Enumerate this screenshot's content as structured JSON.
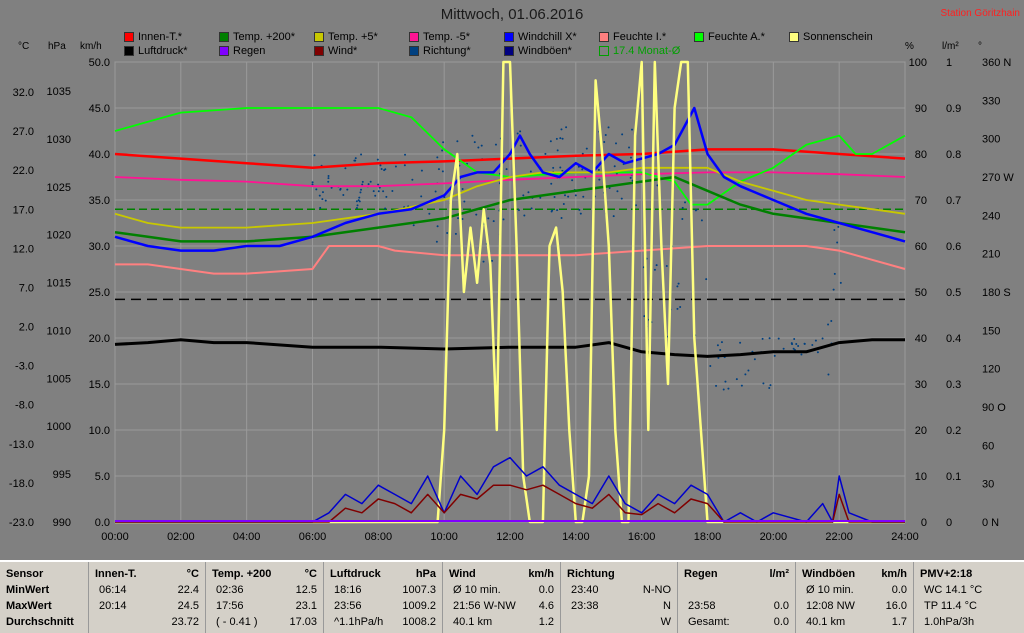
{
  "title": "Mittwoch, 01.06.2016",
  "station": "Station Göritzhain",
  "legend": [
    {
      "label": "Innen-T.*",
      "color": "#ff0000"
    },
    {
      "label": "Temp. +200*",
      "color": "#008000"
    },
    {
      "label": "Temp. +5*",
      "color": "#c8c800"
    },
    {
      "label": "Temp. -5*",
      "color": "#ff1493"
    },
    {
      "label": "Windchill X*",
      "color": "#0000ff"
    },
    {
      "label": "Feuchte I.*",
      "color": "#ff8080"
    },
    {
      "label": "Feuchte A.*",
      "color": "#00ff00"
    },
    {
      "label": "Sonnenschein",
      "color": "#ffff80"
    },
    {
      "label": "Luftdruck*",
      "color": "#000000"
    },
    {
      "label": "Regen",
      "color": "#8000ff"
    },
    {
      "label": "Wind*",
      "color": "#800000"
    },
    {
      "label": "Richtung*",
      "color": "#004080"
    },
    {
      "label": "Windböen*",
      "color": "#000080"
    },
    {
      "label": "17.4 Monat-Ø",
      "color": "#00a000"
    }
  ],
  "units": {
    "temp": "°C",
    "pressure": "hPa",
    "wind": "km/h",
    "percent": "%",
    "rain": "l/m²",
    "deg": "°"
  },
  "chart_data": {
    "type": "line",
    "x_ticks": [
      "00:00",
      "02:00",
      "04:00",
      "06:00",
      "08:00",
      "10:00",
      "12:00",
      "14:00",
      "16:00",
      "18:00",
      "20:00",
      "22:00",
      "24:00"
    ],
    "axes": {
      "temp": {
        "ticks": [
          "32.0",
          "27.0",
          "22.0",
          "17.0",
          "12.0",
          "7.0",
          "2.0",
          "-3.0",
          "-8.0",
          "-13.0",
          "-18.0",
          "-23.0"
        ]
      },
      "pressure": {
        "ticks": [
          "1035",
          "1030",
          "1025",
          "1020",
          "1015",
          "1010",
          "1005",
          "1000",
          "995",
          "990"
        ]
      },
      "wind": {
        "ticks": [
          "50.0",
          "45.0",
          "40.0",
          "35.0",
          "30.0",
          "25.0",
          "20.0",
          "15.0",
          "10.0",
          "5.0",
          "0.0"
        ],
        "range": [
          0,
          50
        ]
      },
      "percent": {
        "ticks": [
          "100",
          "90",
          "80",
          "70",
          "60",
          "50",
          "40",
          "30",
          "20",
          "10",
          "0"
        ]
      },
      "rain": {
        "ticks": [
          "1",
          "0.9",
          "0.8",
          "0.7",
          "0.6",
          "0.5",
          "0.4",
          "0.3",
          "0.2",
          "0.1",
          "0"
        ]
      },
      "direction": {
        "ticks": [
          "360 N",
          "330",
          "300",
          "270 W",
          "240",
          "210",
          "180 S",
          "150",
          "120",
          "90 O",
          "60",
          "30",
          "0 N"
        ]
      }
    },
    "series": [
      {
        "key": "innen",
        "color": "#ff0000",
        "width": 2.5,
        "x": [
          0,
          2,
          4,
          6,
          8,
          10,
          12,
          14,
          16,
          18,
          20,
          22,
          24
        ],
        "y": [
          40,
          39.5,
          39,
          38.5,
          39,
          39.2,
          39.5,
          39.8,
          40,
          40.5,
          40.5,
          40,
          39.5
        ]
      },
      {
        "key": "tm5",
        "color": "#ff1493",
        "width": 1.8,
        "x": [
          0,
          2,
          4,
          6,
          8,
          10,
          12,
          14,
          16,
          18,
          20,
          22,
          24
        ],
        "y": [
          37.5,
          37.2,
          37,
          36.5,
          36.5,
          36.8,
          37.2,
          37.5,
          37.8,
          38,
          38,
          37.8,
          37.5
        ]
      },
      {
        "key": "feuchteA",
        "color": "#00ff00",
        "width": 1.8,
        "x": [
          0,
          1,
          2,
          4,
          6,
          8,
          9,
          10,
          11,
          12,
          14,
          16,
          17,
          17.5,
          18,
          19,
          20,
          21,
          22,
          22.5,
          23,
          24
        ],
        "y": [
          42.5,
          43.5,
          44.5,
          45,
          45,
          45,
          44,
          40.5,
          38,
          37.5,
          38,
          38,
          37,
          34.5,
          34.5,
          37,
          38.5,
          41,
          42,
          40,
          40,
          42
        ]
      },
      {
        "key": "feuchteI",
        "color": "#ff8080",
        "width": 2,
        "x": [
          0,
          1,
          2,
          3,
          4,
          6,
          6.5,
          8,
          8.5,
          10,
          12,
          14,
          16,
          18,
          20,
          21,
          22,
          23,
          24
        ],
        "y": [
          28,
          28,
          27.5,
          27,
          27,
          27.5,
          30,
          30,
          29.5,
          29,
          29,
          29,
          29.5,
          30,
          30,
          30,
          29.5,
          28.5,
          27.5
        ]
      },
      {
        "key": "tp5",
        "color": "#c8c800",
        "width": 1.8,
        "x": [
          0,
          1,
          2,
          4,
          6,
          8,
          10,
          11,
          12,
          13,
          14,
          15,
          16,
          17,
          18,
          19,
          20,
          21,
          22,
          23,
          24
        ],
        "y": [
          33.5,
          32.5,
          32,
          32,
          32.5,
          33.5,
          35,
          36.5,
          37.5,
          38,
          38,
          38,
          38.5,
          38.5,
          38.5,
          37,
          36,
          35,
          34.5,
          34,
          33.5
        ]
      },
      {
        "key": "tp200",
        "color": "#008000",
        "width": 2.5,
        "x": [
          0,
          1,
          2,
          4,
          6,
          8,
          10,
          11,
          12,
          13,
          14,
          15,
          16,
          17,
          18,
          19,
          20,
          21,
          22,
          23,
          24
        ],
        "y": [
          31.5,
          31,
          30.5,
          30.5,
          31,
          32,
          33,
          34,
          35,
          35.5,
          36,
          36.5,
          37,
          37.5,
          36,
          34.5,
          33.5,
          33,
          32.5,
          32,
          31.5
        ]
      },
      {
        "key": "windchill",
        "color": "#0000ff",
        "width": 2.5,
        "x": [
          0,
          1,
          2,
          3,
          4,
          5,
          6,
          7,
          8,
          9,
          10,
          10.5,
          11,
          11.5,
          12,
          12.3,
          12.6,
          13,
          13.5,
          14,
          14.5,
          15,
          15.5,
          16,
          16.5,
          17,
          17.3,
          17.6,
          18,
          18.5,
          19,
          20,
          21,
          22,
          23,
          24
        ],
        "y": [
          31,
          30,
          29.5,
          29.5,
          30,
          30,
          31,
          32.5,
          33.5,
          34,
          35.5,
          37.5,
          38,
          38,
          40,
          42,
          40,
          38,
          37.5,
          39,
          38,
          40,
          39,
          39.5,
          40,
          41,
          43,
          45,
          40,
          37.5,
          36.5,
          35,
          33.5,
          32.5,
          31.5,
          30.5
        ]
      },
      {
        "key": "luftdruck",
        "color": "#000000",
        "width": 3,
        "x": [
          0,
          1,
          2,
          3,
          4,
          6,
          8,
          10,
          12,
          14,
          15,
          16,
          17,
          18,
          19,
          20,
          21,
          22,
          23,
          24
        ],
        "y": [
          19.3,
          19.5,
          19.8,
          19.5,
          19.5,
          19,
          19,
          18.8,
          19,
          19,
          19.5,
          18.5,
          18.2,
          18,
          18.2,
          18.5,
          18.5,
          19.5,
          19.8,
          19.8
        ]
      },
      {
        "key": "sonnenschein",
        "color": "#ffff80",
        "width": 2.5,
        "x": [
          0,
          9.8,
          10,
          10.2,
          10.4,
          10.6,
          10.8,
          11,
          11.2,
          11.4,
          11.6,
          11.8,
          12,
          12.2,
          12.4,
          12.6,
          12.8,
          13,
          13.2,
          13.4,
          13.6,
          13.8,
          14,
          14.2,
          14.4,
          14.6,
          14.8,
          15,
          15.2,
          15.4,
          15.6,
          15.8,
          16,
          16.2,
          16.4,
          16.6,
          16.8,
          17,
          17.2,
          17.4,
          17.6,
          17.8,
          18,
          18.2,
          18.4,
          24
        ],
        "y": [
          0,
          0,
          10,
          35,
          40,
          25,
          32,
          26,
          34,
          28,
          10,
          50,
          50,
          30,
          5,
          0,
          0,
          0,
          30,
          32,
          25,
          10,
          0,
          0,
          5,
          48,
          40,
          30,
          10,
          0,
          0,
          42,
          50,
          10,
          50,
          30,
          15,
          45,
          50,
          50,
          20,
          10,
          0,
          0,
          0,
          0
        ]
      },
      {
        "key": "windboeen",
        "color": "#0000cc",
        "width": 1.5,
        "x": [
          0,
          6,
          6.5,
          7,
          7.5,
          8,
          8.5,
          9,
          9.5,
          10,
          10.5,
          11,
          11.5,
          12,
          12.5,
          13,
          13.5,
          14,
          14.5,
          15,
          15.5,
          16,
          16.5,
          17,
          17.5,
          18,
          18.5,
          19,
          19.5,
          20,
          21,
          21.5,
          21.8,
          22,
          22.3,
          23,
          24
        ],
        "y": [
          0,
          0,
          1,
          3,
          2,
          4,
          3,
          2,
          5,
          1,
          5,
          3,
          6,
          7,
          5,
          6,
          4,
          3,
          2,
          5,
          2,
          1,
          3,
          2,
          4,
          3,
          0,
          1,
          0,
          1,
          0,
          2,
          0,
          5,
          1,
          0,
          0
        ]
      },
      {
        "key": "wind",
        "color": "#800000",
        "width": 1.5,
        "x": [
          0,
          6.5,
          7,
          7.5,
          8,
          8.5,
          9,
          9.5,
          10,
          10.5,
          11,
          11.5,
          12,
          12.5,
          13,
          13.5,
          14,
          14.5,
          15,
          15.5,
          16,
          16.5,
          17,
          17.5,
          18,
          18.5,
          21.8,
          22,
          22.3,
          24
        ],
        "y": [
          0,
          0,
          1.5,
          1,
          2.5,
          2,
          1,
          3,
          1,
          3,
          2.5,
          4,
          4,
          3.5,
          4,
          3,
          2,
          1.5,
          3,
          1,
          0.8,
          2,
          1,
          2.5,
          2,
          0,
          0,
          3,
          0,
          0
        ]
      }
    ],
    "hlines": [
      {
        "y": 24.2,
        "color": "#000000",
        "dash": "10,6"
      },
      {
        "y": 34,
        "color": "#008000",
        "dash": "8,4"
      }
    ]
  },
  "table": {
    "rows": [
      "Sensor",
      "MinWert",
      "MaxWert",
      "Durchschnitt"
    ],
    "columns": [
      {
        "h1": "Innen-T.",
        "h2": "°C",
        "min": [
          "06:14",
          "22.4"
        ],
        "max": [
          "20:14",
          "24.5"
        ],
        "avg": [
          "",
          "23.72"
        ]
      },
      {
        "h1": "Temp. +200",
        "h2": "°C",
        "min": [
          "02:36",
          "12.5"
        ],
        "max": [
          "17:56",
          "23.1"
        ],
        "avg": [
          "( - 0.41 )",
          "17.03"
        ]
      },
      {
        "h1": "Luftdruck",
        "h2": "hPa",
        "min": [
          "18:16",
          "1007.3"
        ],
        "max": [
          "23:56",
          "1009.2"
        ],
        "avg": [
          "^1.1hPa/h",
          "1008.2"
        ]
      },
      {
        "h1": "Wind",
        "h2": "km/h",
        "min": [
          "Ø 10 min.",
          "0.0"
        ],
        "max": [
          "21:56  W-NW",
          "4.6"
        ],
        "avg": [
          "40.1 km",
          "1.2"
        ]
      },
      {
        "h1": "Richtung",
        "h2": "",
        "min": [
          "23:40",
          "N-NO"
        ],
        "max": [
          "23:38",
          "N"
        ],
        "avg": [
          "",
          "W"
        ]
      },
      {
        "h1": "Regen",
        "h2": "l/m²",
        "min": [
          "",
          ""
        ],
        "max": [
          "23:58",
          "0.0"
        ],
        "avg": [
          "Gesamt:",
          "0.0"
        ]
      },
      {
        "h1": "Windböen",
        "h2": "km/h",
        "min": [
          "Ø 10 min.",
          "0.0"
        ],
        "max": [
          "12:08  NW",
          "16.0"
        ],
        "avg": [
          "40.1 km",
          "1.7"
        ]
      },
      {
        "h1": "PMV+2:18",
        "h2": "",
        "min": [
          "WC 14.1 °C",
          ""
        ],
        "max": [
          "TP 11.4 °C",
          ""
        ],
        "avg": [
          "1.0hPa/3h",
          ""
        ]
      }
    ]
  }
}
